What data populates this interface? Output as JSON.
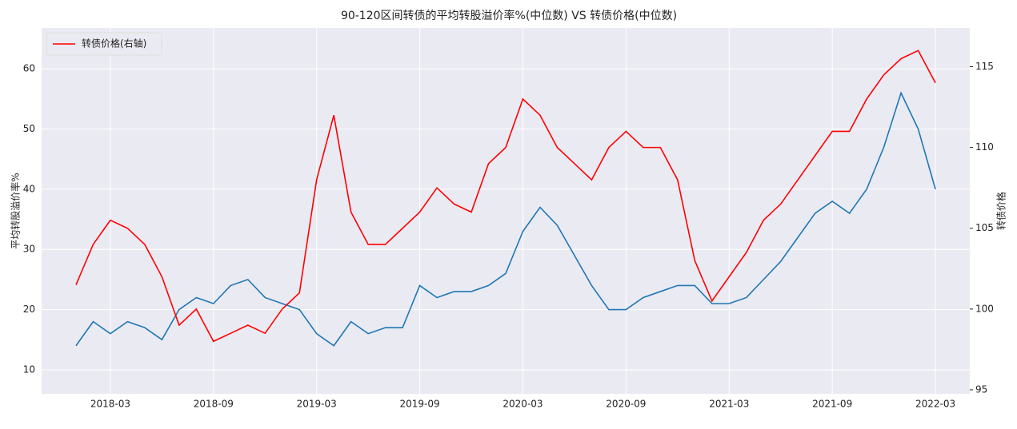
{
  "chart_data": {
    "type": "line",
    "title": "90-120区间转债的平均转股溢价率%(中位数) VS 转债价格(中位数)",
    "ylabel": "平均转股溢价率%",
    "y2label": "转债价格",
    "x": [
      "2018-01",
      "2018-02",
      "2018-03",
      "2018-04",
      "2018-05",
      "2018-06",
      "2018-07",
      "2018-08",
      "2018-09",
      "2018-10",
      "2018-11",
      "2018-12",
      "2019-01",
      "2019-02",
      "2019-03",
      "2019-04",
      "2019-05",
      "2019-06",
      "2019-07",
      "2019-08",
      "2019-09",
      "2019-10",
      "2019-11",
      "2019-12",
      "2020-01",
      "2020-02",
      "2020-03",
      "2020-04",
      "2020-05",
      "2020-06",
      "2020-07",
      "2020-08",
      "2020-09",
      "2020-10",
      "2020-11",
      "2020-12",
      "2021-01",
      "2021-02",
      "2021-03",
      "2021-04",
      "2021-05",
      "2021-06",
      "2021-07",
      "2021-08",
      "2021-09",
      "2021-10",
      "2021-11",
      "2021-12",
      "2022-01",
      "2022-02",
      "2022-03"
    ],
    "series": [
      {
        "color": "#1f77b4",
        "values": [
          14,
          18,
          16,
          18,
          17,
          15,
          20,
          22,
          21,
          24,
          25,
          22,
          21,
          20,
          16,
          14,
          18,
          16,
          17,
          17,
          24,
          22,
          23,
          23,
          24,
          26,
          33,
          37,
          34,
          29,
          24,
          20,
          20,
          22,
          23,
          24,
          24,
          21,
          21,
          22,
          25,
          28,
          32,
          36,
          38,
          36,
          40,
          47,
          56,
          50,
          40
        ]
      },
      {
        "name": "转债价格(右轴)",
        "color": "#ff0000",
        "axis": "y2",
        "values": [
          101.5,
          104,
          105.5,
          105,
          104,
          102,
          99,
          100,
          98,
          98.5,
          99,
          98.5,
          100,
          101,
          108,
          112,
          106,
          104,
          104,
          105,
          106,
          107.5,
          106.5,
          106,
          109,
          110,
          113,
          112,
          110,
          109,
          108,
          110,
          111,
          110,
          110,
          108,
          103,
          100.5,
          102,
          103.5,
          105.5,
          106.5,
          108,
          109.5,
          111,
          111,
          113,
          114.5,
          115.5,
          116,
          114
        ]
      }
    ],
    "xlim": [
      "2017-11",
      "2022-05"
    ],
    "xticks": [
      "2018-03",
      "2018-09",
      "2019-03",
      "2019-09",
      "2020-03",
      "2020-09",
      "2021-03",
      "2021-09",
      "2022-03"
    ],
    "ylim": [
      6,
      66.8
    ],
    "yticks": [
      10,
      20,
      30,
      40,
      50,
      60
    ],
    "y2lim": [
      94.75,
      117.4
    ],
    "y2ticks": [
      95,
      100,
      105,
      110,
      115
    ],
    "grid": true,
    "legend": "upper left"
  }
}
